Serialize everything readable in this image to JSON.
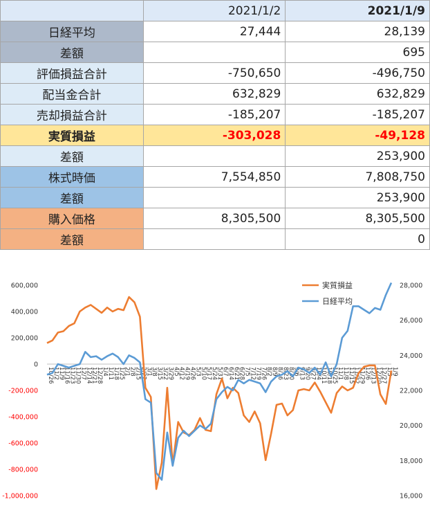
{
  "table": {
    "headers": [
      "",
      "2021/1/2",
      "2021/1/9"
    ],
    "rows": [
      {
        "label": "日経平均",
        "v1": "27,444",
        "v2": "28,139",
        "bg": "#adb9ca",
        "red": false,
        "bold": false
      },
      {
        "label": "差額",
        "v1": "",
        "v2": "695",
        "bg": "#adb9ca",
        "red": false,
        "bold": false
      },
      {
        "label": "評価損益合計",
        "v1": "-750,650",
        "v2": "-496,750",
        "bg": "#ddebf7",
        "red": true,
        "bold": false
      },
      {
        "label": "配当金合計",
        "v1": "632,829",
        "v2": "632,829",
        "bg": "#ddebf7",
        "red": false,
        "bold": false
      },
      {
        "label": "売却損益合計",
        "v1": "-185,207",
        "v2": "-185,207",
        "bg": "#ddebf7",
        "red": true,
        "bold": false
      },
      {
        "label": "実質損益",
        "v1": "-303,028",
        "v2": "-49,128",
        "bg": "#ffe699",
        "red": true,
        "bold": true
      },
      {
        "label": "差額",
        "v1": "",
        "v2": "253,900",
        "bg": "#ddebf7",
        "red": false,
        "bold": false
      },
      {
        "label": "株式時価",
        "v1": "7,554,850",
        "v2": "7,808,750",
        "bg": "#9dc3e6",
        "red": false,
        "bold": false
      },
      {
        "label": "差額",
        "v1": "",
        "v2": "253,900",
        "bg": "#9dc3e6",
        "red": false,
        "bold": false
      },
      {
        "label": "購入価格",
        "v1": "8,305,500",
        "v2": "8,305,500",
        "bg": "#f4b183",
        "red": false,
        "bold": false
      },
      {
        "label": "差額",
        "v1": "",
        "v2": "0",
        "bg": "#f4b183",
        "red": false,
        "bold": false
      }
    ]
  },
  "chart_data": {
    "type": "line",
    "x_tick_labels": [
      "10/26",
      "11/2",
      "11/9",
      "11/16",
      "11/23",
      "11/30",
      "12/7",
      "12/14",
      "12/21",
      "12/28",
      "1/4",
      "1/11",
      "1/18",
      "1/25",
      "2/1",
      "2/8",
      "2/15",
      "2/22",
      "3/1",
      "3/8",
      "3/15",
      "3/22",
      "3/29",
      "4/5",
      "4/12",
      "4/19",
      "4/26",
      "5/3",
      "5/10",
      "5/17",
      "5/24",
      "5/31",
      "6/7",
      "6/14",
      "6/21",
      "6/28",
      "7/5",
      "7/12",
      "7/19",
      "7/26",
      "8/2",
      "8/9",
      "8/16",
      "8/23",
      "8/30",
      "9/6",
      "9/13",
      "9/20",
      "9/27",
      "10/4",
      "10/11",
      "10/18",
      "10/25",
      "11/1",
      "11/8",
      "11/15",
      "11/22",
      "11/29",
      "12/6",
      "12/13",
      "12/20",
      "12/27",
      "1/3",
      "1/9"
    ],
    "y_left": {
      "min": -1000000,
      "max": 600000,
      "ticks": [
        "600,000",
        "400,000",
        "200,000",
        "0",
        "-200,000",
        "-400,000",
        "-600,000",
        "-800,000",
        "-1,000,000"
      ]
    },
    "y_right": {
      "min": 16000,
      "max": 28000,
      "ticks": [
        "28,000",
        "26,000",
        "24,000",
        "22,000",
        "20,000",
        "18,000",
        "16,000"
      ]
    },
    "series": [
      {
        "name": "実質損益",
        "axis": "left",
        "color": "#ed7d31",
        "values": [
          160000,
          180000,
          240000,
          250000,
          290000,
          310000,
          400000,
          430000,
          450000,
          420000,
          390000,
          430000,
          400000,
          420000,
          410000,
          510000,
          470000,
          360000,
          -180000,
          -250000,
          -950000,
          -750000,
          -180000,
          -770000,
          -440000,
          -520000,
          -540000,
          -500000,
          -410000,
          -500000,
          -510000,
          -230000,
          -110000,
          -260000,
          -180000,
          -220000,
          -390000,
          -440000,
          -360000,
          -450000,
          -730000,
          -530000,
          -310000,
          -300000,
          -390000,
          -350000,
          -200000,
          -190000,
          -200000,
          -140000,
          -210000,
          -290000,
          -370000,
          -220000,
          -170000,
          -200000,
          -180000,
          -70000,
          -20000,
          -10000,
          -10000,
          -230000,
          -303028,
          -49128
        ]
      },
      {
        "name": "日経平均",
        "axis": "right",
        "color": "#5b9bd5",
        "values": [
          22900,
          23000,
          23500,
          23400,
          23300,
          23400,
          23500,
          24200,
          23900,
          23950,
          23750,
          23950,
          24100,
          23900,
          23500,
          24000,
          23850,
          23600,
          21500,
          21300,
          17300,
          16900,
          19600,
          17700,
          19300,
          19700,
          19400,
          19700,
          20000,
          19800,
          20100,
          21500,
          21900,
          22200,
          22000,
          22600,
          22400,
          22600,
          22500,
          22400,
          21900,
          22500,
          22800,
          22900,
          23100,
          22800,
          23300,
          23200,
          23000,
          23300,
          22900,
          23600,
          22800,
          23500,
          25000,
          25400,
          26800,
          26800,
          26600,
          26400,
          26700,
          26600,
          27444,
          28139
        ]
      }
    ],
    "legend": "top-right"
  }
}
